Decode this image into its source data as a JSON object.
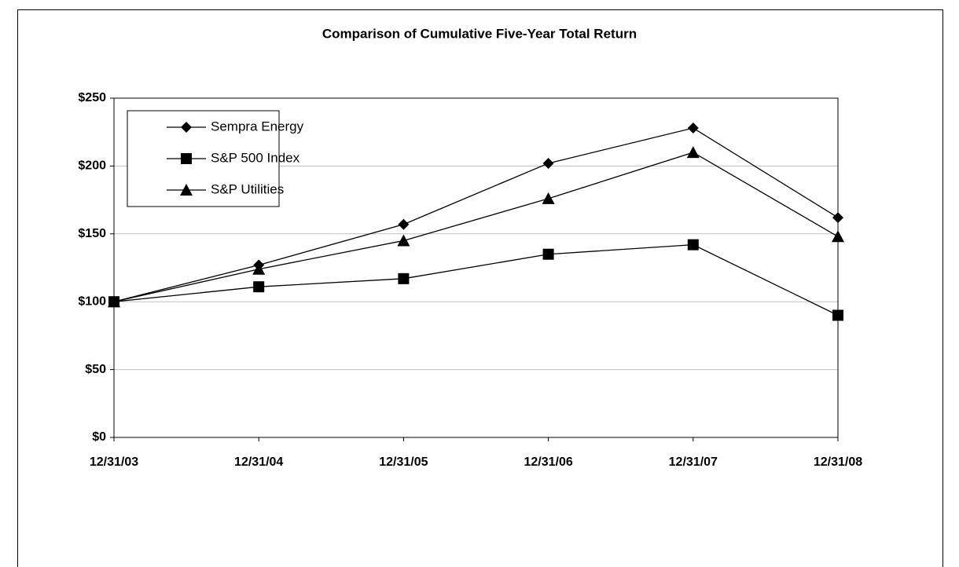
{
  "chart_data": {
    "type": "line",
    "title": "Comparison of Cumulative Five-Year Total Return",
    "categories": [
      "12/31/03",
      "12/31/04",
      "12/31/05",
      "12/31/06",
      "12/31/07",
      "12/31/08"
    ],
    "series": [
      {
        "name": "Sempra Energy",
        "color": "#000000",
        "marker": "diamond",
        "values": [
          100,
          127,
          157,
          202,
          228,
          162
        ]
      },
      {
        "name": "S&P 500 Index",
        "color": "#000000",
        "marker": "square",
        "values": [
          100,
          111,
          117,
          135,
          142,
          90
        ]
      },
      {
        "name": "S&P Utilities",
        "color": "#000000",
        "marker": "triangle",
        "values": [
          100,
          124,
          145,
          176,
          210,
          148
        ]
      }
    ],
    "ylim": [
      0,
      250
    ],
    "yticks": [
      {
        "value": 0,
        "label": "$0"
      },
      {
        "value": 50,
        "label": "$50"
      },
      {
        "value": 100,
        "label": "$100"
      },
      {
        "value": 150,
        "label": "$150"
      },
      {
        "value": 200,
        "label": "$200"
      },
      {
        "value": 250,
        "label": "$250"
      }
    ],
    "grid": true,
    "legend": "upper left"
  }
}
